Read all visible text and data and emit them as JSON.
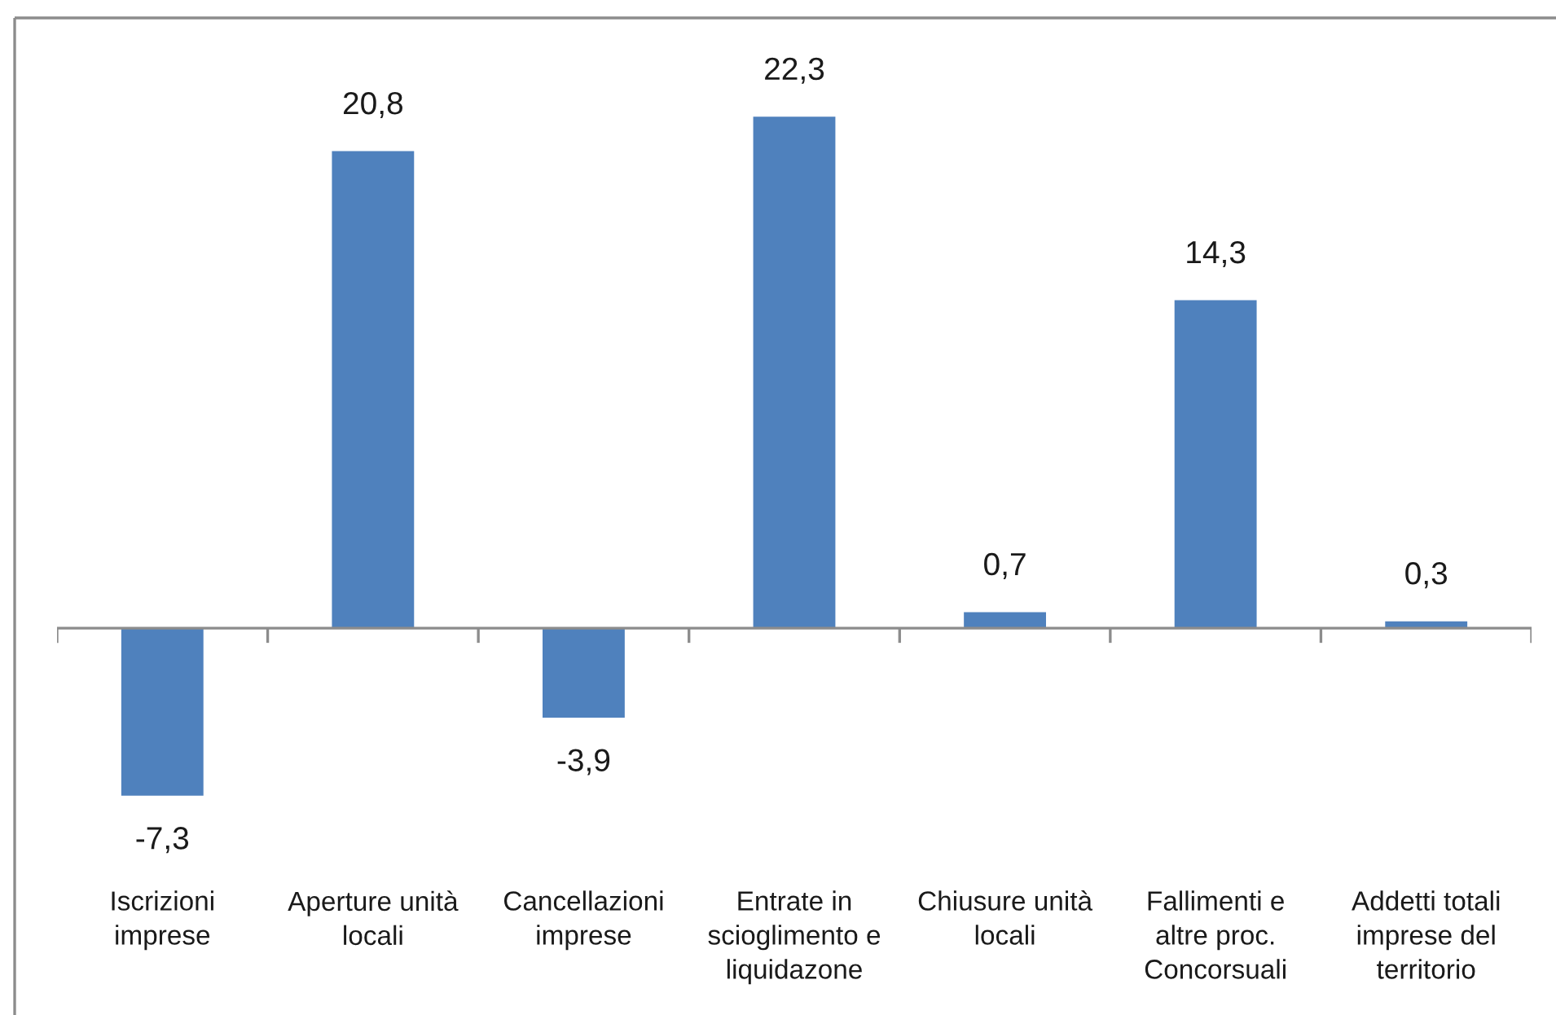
{
  "chart_data": {
    "type": "bar",
    "categories": [
      "Iscrizioni\nimprese",
      "Aperture unità\nlocali",
      "Cancellazioni\nimprese",
      "Entrate in\nscioglimento e\nliquidazone",
      "Chiusure unità\nlocali",
      "Fallimenti e\naltre proc.\nConcorsuali",
      "Addetti totali\nimprese del\nterritorio"
    ],
    "values": [
      -7.3,
      20.8,
      -3.9,
      22.3,
      0.7,
      14.3,
      0.3
    ],
    "color": "#4f81bd",
    "value_labels": [
      "-7,3",
      "20,8",
      "-3,9",
      "22,3",
      "0,7",
      "14,3",
      "0,3"
    ]
  }
}
